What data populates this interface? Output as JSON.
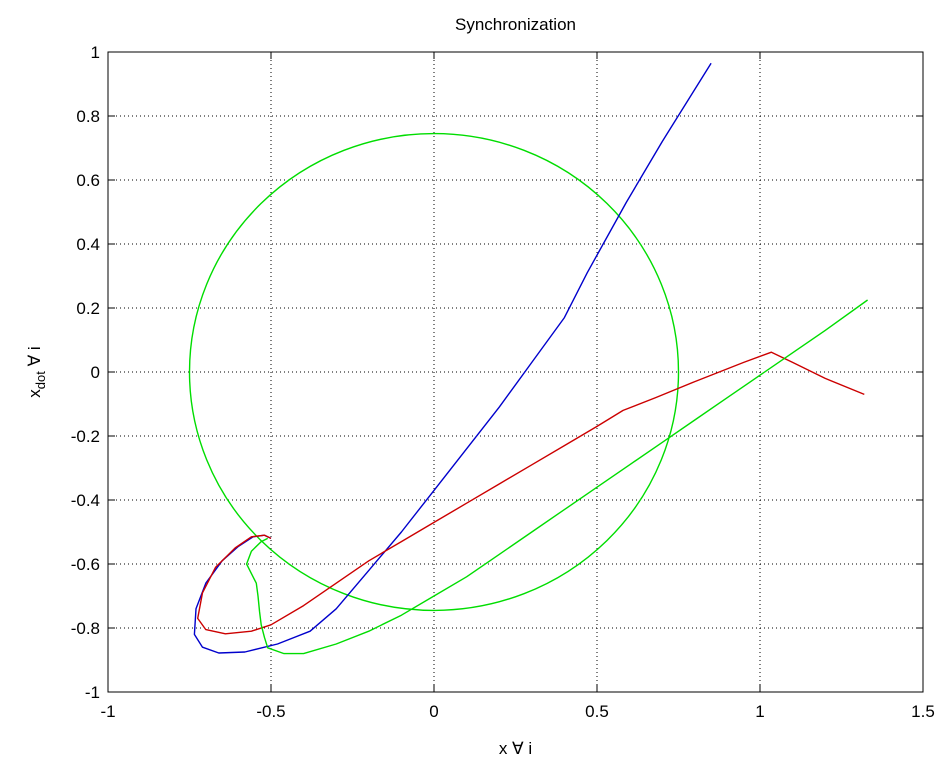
{
  "chart_data": {
    "type": "line",
    "title": "Synchronization",
    "xlabel": "x ∀ i",
    "ylabel_main": "x",
    "ylabel_sub": "dot",
    "ylabel_suffix": " ∀ i",
    "xlim": [
      -1,
      1.5
    ],
    "ylim": [
      -1,
      1
    ],
    "grid": true,
    "grid_style": "dotted",
    "x_ticks": [
      -1,
      -0.5,
      0,
      0.5,
      1,
      1.5
    ],
    "x_tick_labels": [
      "-1",
      "-0.5",
      "0",
      "0.5",
      "1",
      "1.5"
    ],
    "y_ticks": [
      -1,
      -0.8,
      -0.6,
      -0.4,
      -0.2,
      0,
      0.2,
      0.4,
      0.6,
      0.8,
      1
    ],
    "y_tick_labels": [
      "-1",
      "-0.8",
      "-0.6",
      "-0.4",
      "-0.2",
      "0",
      "0.2",
      "0.4",
      "0.6",
      "0.8",
      "1"
    ],
    "series": [
      {
        "color": "#00dd00",
        "shape": "circle",
        "center": [
          0,
          0
        ],
        "radius_x": 0.75,
        "radius_y": 0.745
      },
      {
        "color": "#0000cc",
        "points": [
          [
            0.85,
            0.965
          ],
          [
            0.7,
            0.72
          ],
          [
            0.59,
            0.53
          ],
          [
            0.47,
            0.31
          ],
          [
            0.4,
            0.17
          ],
          [
            0.3,
            0.03
          ],
          [
            0.2,
            -0.11
          ],
          [
            0.1,
            -0.24
          ],
          [
            0,
            -0.37
          ],
          [
            -0.1,
            -0.5
          ],
          [
            -0.2,
            -0.62
          ],
          [
            -0.3,
            -0.74
          ],
          [
            -0.38,
            -0.81
          ],
          [
            -0.48,
            -0.85
          ],
          [
            -0.58,
            -0.875
          ],
          [
            -0.66,
            -0.878
          ],
          [
            -0.71,
            -0.86
          ],
          [
            -0.735,
            -0.82
          ],
          [
            -0.73,
            -0.74
          ],
          [
            -0.7,
            -0.66
          ],
          [
            -0.65,
            -0.59
          ],
          [
            -0.6,
            -0.545
          ],
          [
            -0.555,
            -0.515
          ],
          [
            -0.52,
            -0.51
          ],
          [
            -0.5,
            -0.52
          ]
        ]
      },
      {
        "color": "#cc0000",
        "points": [
          [
            1.32,
            -0.07
          ],
          [
            1.2,
            -0.02
          ],
          [
            1.1,
            0.03
          ],
          [
            1.035,
            0.062
          ],
          [
            0.95,
            0.03
          ],
          [
            0.8,
            -0.03
          ],
          [
            0.68,
            -0.08
          ],
          [
            0.58,
            -0.12
          ],
          [
            0.5,
            -0.17
          ],
          [
            0.4,
            -0.23
          ],
          [
            0.3,
            -0.29
          ],
          [
            0.2,
            -0.35
          ],
          [
            0.1,
            -0.41
          ],
          [
            0,
            -0.47
          ],
          [
            -0.1,
            -0.53
          ],
          [
            -0.2,
            -0.59
          ],
          [
            -0.3,
            -0.66
          ],
          [
            -0.4,
            -0.73
          ],
          [
            -0.5,
            -0.79
          ],
          [
            -0.56,
            -0.81
          ],
          [
            -0.64,
            -0.818
          ],
          [
            -0.7,
            -0.805
          ],
          [
            -0.725,
            -0.77
          ],
          [
            -0.71,
            -0.69
          ],
          [
            -0.67,
            -0.61
          ],
          [
            -0.61,
            -0.55
          ],
          [
            -0.56,
            -0.515
          ],
          [
            -0.52,
            -0.51
          ],
          [
            -0.5,
            -0.52
          ]
        ]
      },
      {
        "color": "#00dd00",
        "points": [
          [
            1.33,
            0.225
          ],
          [
            1.2,
            0.13
          ],
          [
            1.1,
            0.06
          ],
          [
            1.0,
            -0.01
          ],
          [
            0.9,
            -0.08
          ],
          [
            0.8,
            -0.15
          ],
          [
            0.7,
            -0.22
          ],
          [
            0.6,
            -0.29
          ],
          [
            0.5,
            -0.36
          ],
          [
            0.4,
            -0.43
          ],
          [
            0.3,
            -0.5
          ],
          [
            0.2,
            -0.57
          ],
          [
            0.1,
            -0.64
          ],
          [
            0,
            -0.7
          ],
          [
            -0.1,
            -0.76
          ],
          [
            -0.2,
            -0.81
          ],
          [
            -0.3,
            -0.85
          ],
          [
            -0.4,
            -0.88
          ],
          [
            -0.46,
            -0.88
          ],
          [
            -0.51,
            -0.862
          ],
          [
            -0.52,
            -0.83
          ],
          [
            -0.53,
            -0.79
          ],
          [
            -0.535,
            -0.75
          ],
          [
            -0.54,
            -0.7
          ],
          [
            -0.545,
            -0.66
          ],
          [
            -0.56,
            -0.63
          ],
          [
            -0.575,
            -0.6
          ],
          [
            -0.56,
            -0.56
          ],
          [
            -0.53,
            -0.53
          ],
          [
            -0.51,
            -0.52
          ]
        ]
      }
    ]
  }
}
